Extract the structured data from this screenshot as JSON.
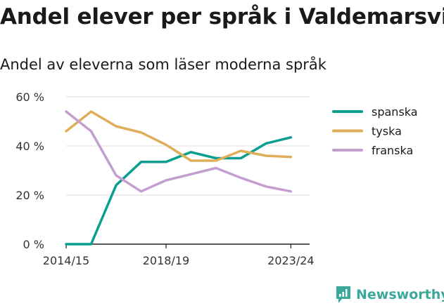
{
  "title": "Andel elever per språk i Valdemarsvik",
  "subtitle": "Andel av eleverna som läser moderna språk",
  "brand": {
    "name": "Newsworthy",
    "icon": "newsworthy-logo-icon",
    "color": "#3aa89a"
  },
  "chart_data": {
    "type": "line",
    "x": [
      "2014/15",
      "2015/16",
      "2016/17",
      "2017/18",
      "2018/19",
      "2019/20",
      "2020/21",
      "2021/22",
      "2022/23",
      "2023/24"
    ],
    "x_tick_labels": [
      "2014/15",
      "2018/19",
      "2023/24"
    ],
    "y_ticks": [
      "0 %",
      "20 %",
      "40 %",
      "60 %"
    ],
    "y_tick_values": [
      0,
      20,
      40,
      60
    ],
    "ylim": [
      0,
      60
    ],
    "grid": true,
    "legend_position": "right",
    "series": [
      {
        "name": "spanska",
        "color": "#0a9e8f",
        "values": [
          0,
          0,
          24,
          33.5,
          33.5,
          37.5,
          35,
          35,
          41,
          43.5
        ]
      },
      {
        "name": "tyska",
        "color": "#deae5a",
        "values": [
          46,
          54,
          48,
          45.5,
          40.5,
          34,
          34,
          38,
          36,
          35.5
        ]
      },
      {
        "name": "franska",
        "color": "#c59ed0",
        "values": [
          54,
          46,
          28,
          21.5,
          26,
          28.5,
          31,
          27,
          23.5,
          21.5
        ]
      }
    ]
  }
}
